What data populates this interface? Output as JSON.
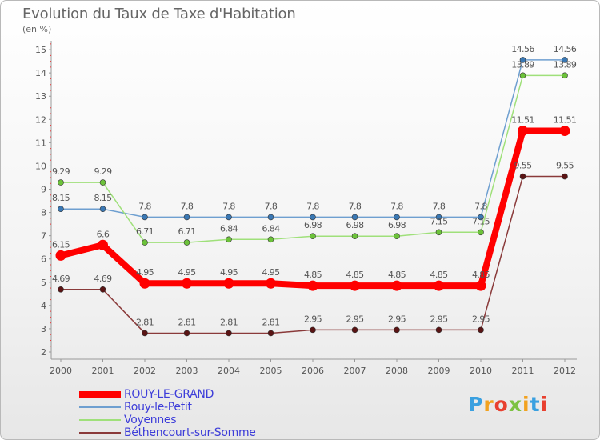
{
  "title": "Evolution du Taux de Taxe d'Habitation",
  "subtitle": "(en %)",
  "logo": {
    "text": "Proxiti",
    "colors": [
      "#3aa0e0",
      "#f2a21f",
      "#e8402f",
      "#7cc242",
      "#f2a21f",
      "#3aa0e0",
      "#e8402f"
    ]
  },
  "chart_data": {
    "type": "line",
    "x": [
      "2000",
      "2001",
      "2002",
      "2003",
      "2004",
      "2005",
      "2006",
      "2007",
      "2008",
      "2009",
      "2010",
      "2011",
      "2012"
    ],
    "yticks": [
      "2",
      "3",
      "4",
      "5",
      "6",
      "7",
      "8",
      "9",
      "10",
      "11",
      "12",
      "13",
      "14",
      "15"
    ],
    "ylim": [
      2,
      15
    ],
    "grid": false,
    "legend_position": "bottom-left",
    "series": [
      {
        "name": "ROUY-LE-GRAND",
        "color": "#ff0000",
        "marker": "#ff0000",
        "bold": true,
        "values": [
          6.15,
          6.6,
          4.95,
          4.95,
          4.95,
          4.95,
          4.85,
          4.85,
          4.85,
          4.85,
          4.85,
          11.51,
          11.51
        ],
        "labels": [
          "6.15",
          "6.6",
          "4.95",
          "4.95",
          "4.95",
          "4.95",
          "4.85",
          "4.85",
          "4.85",
          "4.85",
          "4.85",
          "11.51",
          "11.51"
        ]
      },
      {
        "name": "Rouy-le-Petit",
        "color": "#6e9fd0",
        "marker": "#3a78b4",
        "bold": false,
        "values": [
          8.15,
          8.15,
          7.8,
          7.8,
          7.8,
          7.8,
          7.8,
          7.8,
          7.8,
          7.8,
          7.8,
          14.56,
          14.56
        ],
        "labels": [
          "8.15",
          "8.15",
          "7.8",
          "7.8",
          "7.8",
          "7.8",
          "7.8",
          "7.8",
          "7.8",
          "7.8",
          "7.8",
          "14.56",
          "14.56"
        ]
      },
      {
        "name": "Voyennes",
        "color": "#9fe07a",
        "marker": "#6cc23a",
        "bold": false,
        "values": [
          9.29,
          9.29,
          6.71,
          6.71,
          6.84,
          6.84,
          6.98,
          6.98,
          6.98,
          7.15,
          7.15,
          13.89,
          13.89
        ],
        "labels": [
          "9.29",
          "9.29",
          "6.71",
          "6.71",
          "6.84",
          "6.84",
          "6.98",
          "6.98",
          "6.98",
          "7.15",
          "7.15",
          "13.89",
          "13.89"
        ]
      },
      {
        "name": "Béthencourt-sur-Somme",
        "color": "#8a3a3a",
        "marker": "#5a1414",
        "bold": false,
        "values": [
          4.69,
          4.69,
          2.81,
          2.81,
          2.81,
          2.81,
          2.95,
          2.95,
          2.95,
          2.95,
          2.95,
          9.55,
          9.55
        ],
        "labels": [
          "4.69",
          "4.69",
          "2.81",
          "2.81",
          "2.81",
          "2.81",
          "2.95",
          "2.95",
          "2.95",
          "2.95",
          "2.95",
          "9.55",
          "9.55"
        ]
      }
    ]
  }
}
